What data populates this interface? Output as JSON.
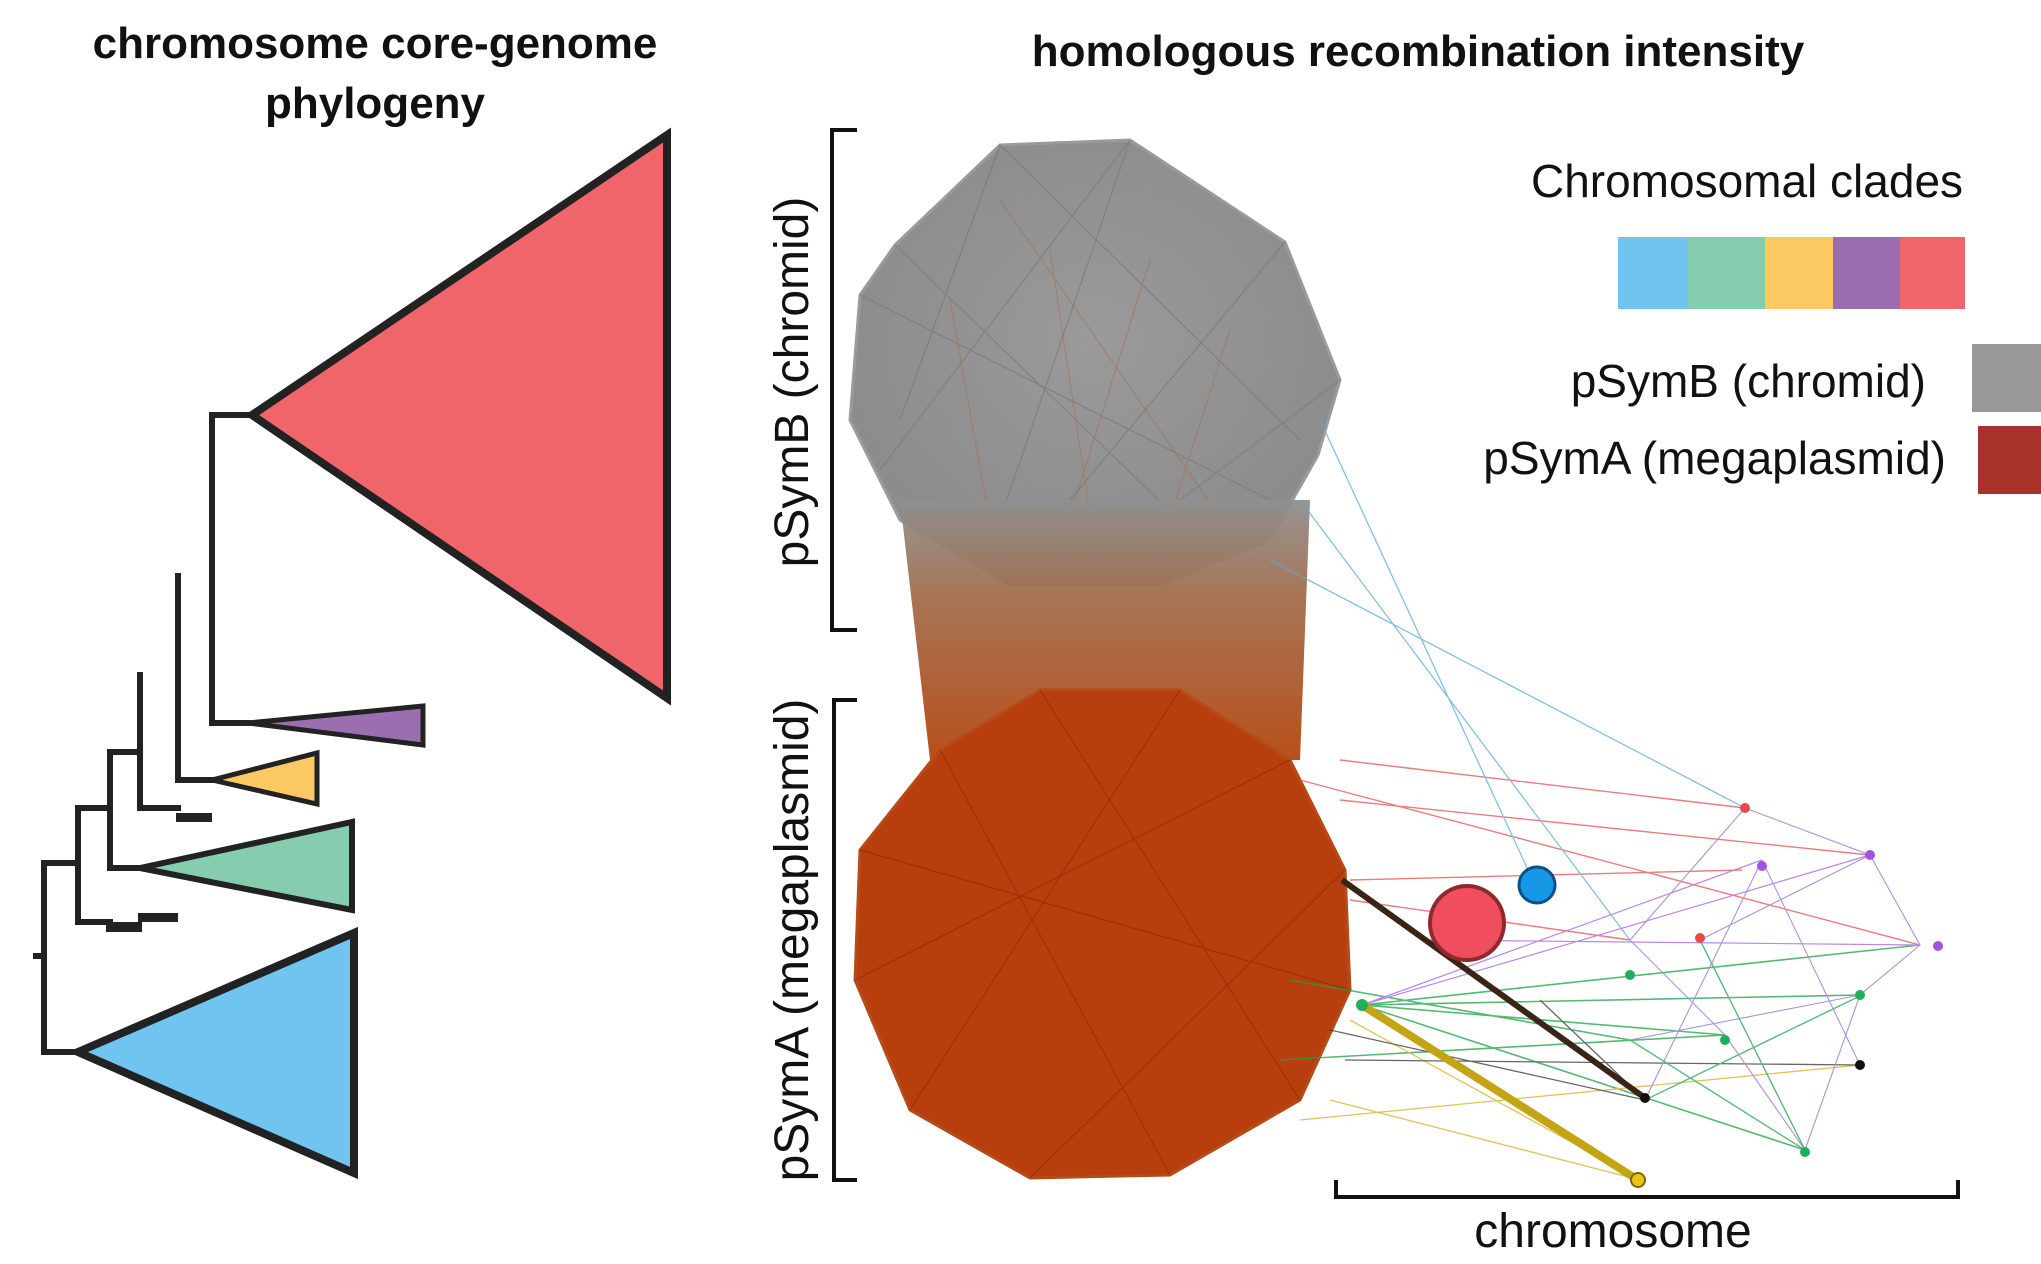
{
  "phylogeny": {
    "title_line1": "chromosome core-genome",
    "title_line2": "phylogeny",
    "clade_colors": [
      "#6fc5ef",
      "#86cdb0",
      "#fcc862",
      "#9b6eb1",
      "#f0656a"
    ]
  },
  "network": {
    "title": "homologous recombination intensity",
    "psymb_label": "pSymB (chromid)",
    "psyma_label": "pSymA (megaplasmid)",
    "chromosome_label": "chromosome",
    "colors": {
      "psymb": "#8f8f8f",
      "psyma": "#b83a0a",
      "transition": "#a0603a",
      "chromosome_edge_black": "#222222"
    }
  },
  "legend": {
    "clades_title": "Chromosomal clades",
    "clade_swatches": [
      "#6fc5ef",
      "#86cdb0",
      "#fcc862",
      "#9b6eb1",
      "#f0656a"
    ],
    "psymb_label": "pSymB (chromid)",
    "psymb_color": "#999999",
    "psyma_label": "pSymA (megaplasmid)",
    "psyma_color": "#a9322a"
  }
}
